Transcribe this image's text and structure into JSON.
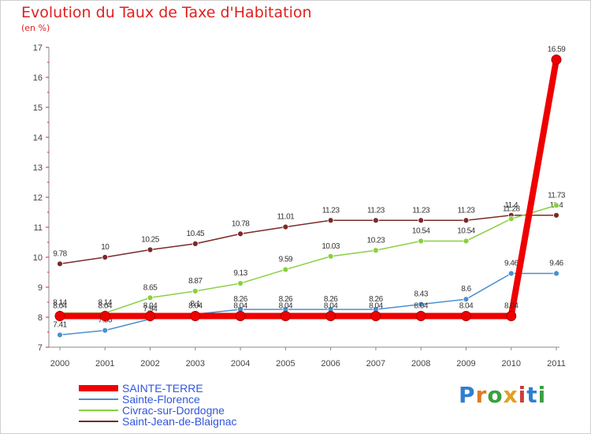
{
  "chart_data": {
    "type": "line",
    "title": "Evolution du Taux de Taxe d'Habitation",
    "subtitle": "(en %)",
    "x": [
      "2000",
      "2001",
      "2002",
      "2003",
      "2004",
      "2005",
      "2006",
      "2007",
      "2008",
      "2009",
      "2010",
      "2011"
    ],
    "ylim": [
      7,
      17
    ],
    "yticks": [
      7,
      8,
      9,
      10,
      11,
      12,
      13,
      14,
      15,
      16,
      17
    ],
    "grid": false,
    "legend_position": "bottom-left",
    "series": [
      {
        "name": "SAINTE-TERRE",
        "color": "#ee0000",
        "values": [
          8.04,
          8.04,
          8.04,
          8.04,
          8.04,
          8.04,
          8.04,
          8.04,
          8.04,
          8.04,
          8.04,
          16.59
        ],
        "labels": [
          "8.04",
          "8.04",
          "8.04",
          "8.04",
          "8.04",
          "8.04",
          "8.04",
          "8.04",
          "8.04",
          "8.04",
          "8.04",
          "16.59"
        ]
      },
      {
        "name": "Sainte-Florence",
        "color": "#4a90d0",
        "values": [
          7.41,
          7.56,
          7.94,
          8.1,
          8.26,
          8.26,
          8.26,
          8.26,
          8.43,
          8.6,
          9.46,
          9.46
        ],
        "labels": [
          "7.41",
          "7.56",
          "7.94",
          "8.1",
          "8.26",
          "8.26",
          "8.26",
          "8.26",
          "8.43",
          "8.6",
          "9.46",
          "9.46"
        ]
      },
      {
        "name": "Civrac-sur-Dordogne",
        "color": "#88d040",
        "values": [
          8.14,
          8.14,
          8.65,
          8.87,
          9.13,
          9.59,
          10.03,
          10.23,
          10.54,
          10.54,
          11.28,
          11.73
        ],
        "labels": [
          "8.14",
          "8.14",
          "8.65",
          "8.87",
          "9.13",
          "9.59",
          "10.03",
          "10.23",
          "10.54",
          "10.54",
          "11.28",
          "11.73"
        ]
      },
      {
        "name": "Saint-Jean-de-Blaignac",
        "color": "#7a2a2a",
        "values": [
          9.78,
          10,
          10.25,
          10.45,
          10.78,
          11.01,
          11.23,
          11.23,
          11.23,
          11.23,
          11.4,
          11.4
        ],
        "labels": [
          "9.78",
          "10",
          "10.25",
          "10.45",
          "10.78",
          "11.01",
          "11.23",
          "11.23",
          "11.23",
          "11.23",
          "11.4",
          "11.4"
        ]
      }
    ]
  },
  "brand": {
    "letters": [
      "P",
      "r",
      "o",
      "x",
      "i",
      "t",
      "i"
    ],
    "colors": [
      "#2f7fd0",
      "#e07a20",
      "#3aa040",
      "#e0a020",
      "#d03a3a",
      "#2f7fd0",
      "#3aa040"
    ]
  }
}
